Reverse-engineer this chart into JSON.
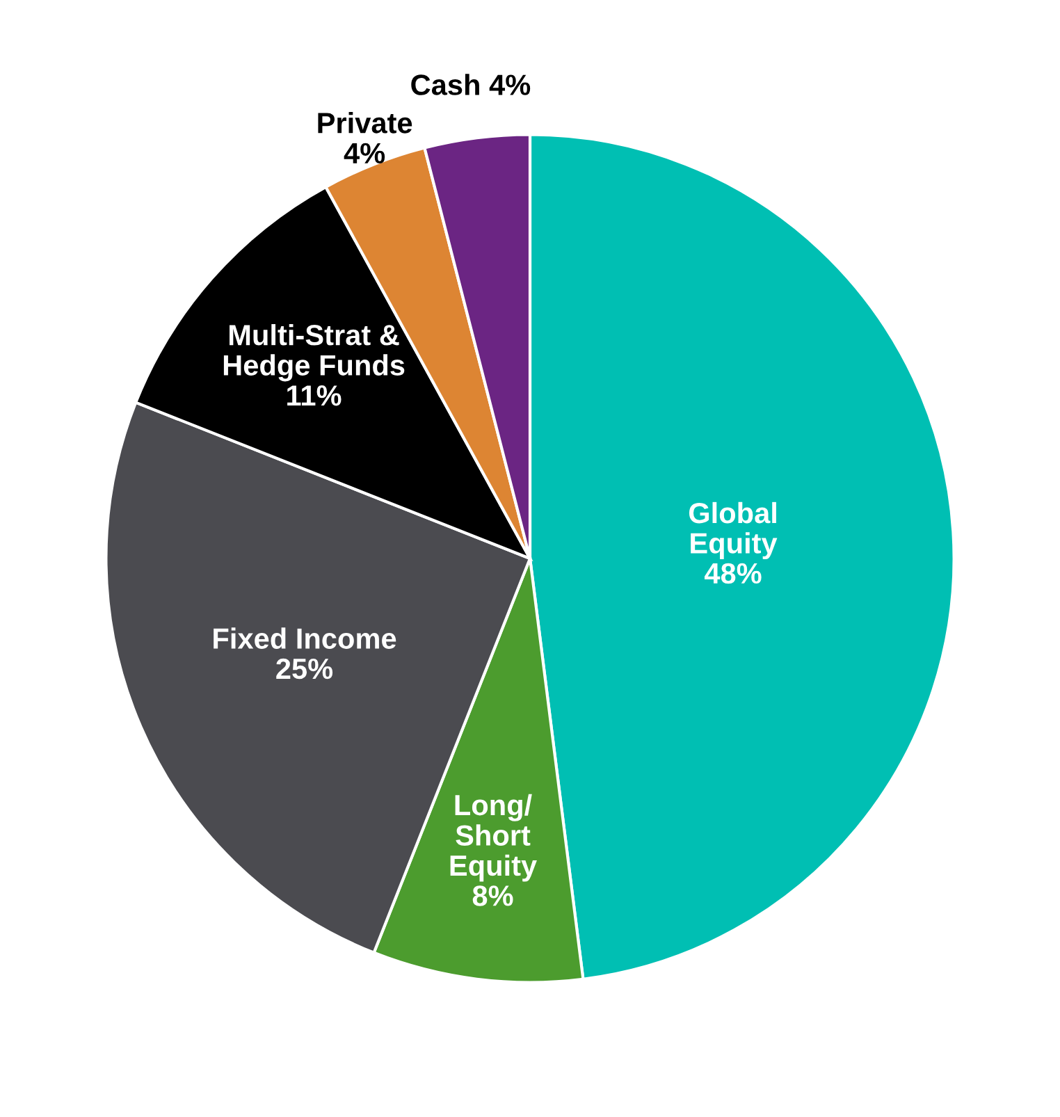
{
  "chart_data": {
    "type": "pie",
    "categories": [
      "Global\nEquity",
      "Long/\nShort\nEquity",
      "Fixed Income",
      "Multi-Strat &\nHedge Funds",
      "Private",
      "Cash"
    ],
    "values": [
      48,
      8,
      25,
      11,
      4,
      4
    ],
    "value_labels": [
      "48%",
      "8%",
      "25%",
      "11%",
      "4%",
      "4%"
    ],
    "colors": [
      "#00bfb3",
      "#4c9c2e",
      "#4b4b50",
      "#000000",
      "#dd8533",
      "#6b2583"
    ]
  }
}
